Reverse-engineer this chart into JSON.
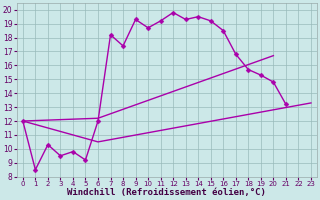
{
  "xlabel": "Windchill (Refroidissement éolien,°C)",
  "bg_color": "#cce8e8",
  "line_color": "#aa00aa",
  "grid_color": "#99bbbb",
  "xlim": [
    -0.5,
    23.5
  ],
  "ylim": [
    8,
    20.5
  ],
  "xticks": [
    0,
    1,
    2,
    3,
    4,
    5,
    6,
    7,
    8,
    9,
    10,
    11,
    12,
    13,
    14,
    15,
    16,
    17,
    18,
    19,
    20,
    21,
    22,
    23
  ],
  "yticks": [
    8,
    9,
    10,
    11,
    12,
    13,
    14,
    15,
    16,
    17,
    18,
    19,
    20
  ],
  "line1_x": [
    0,
    1,
    2,
    3,
    4,
    5,
    6,
    7,
    8,
    9,
    10,
    11,
    12,
    13,
    14,
    15,
    16,
    17,
    18,
    19,
    20,
    21,
    22
  ],
  "line1_y": [
    12.0,
    8.5,
    10.3,
    9.5,
    9.8,
    9.2,
    12.0,
    18.2,
    17.4,
    19.3,
    18.7,
    19.2,
    19.8,
    19.3,
    19.5,
    19.2,
    18.5,
    16.8,
    15.7,
    15.3,
    14.8,
    13.2,
    null
  ],
  "line2_x": [
    0,
    6,
    20
  ],
  "line2_y": [
    12.0,
    12.2,
    16.7
  ],
  "line3_x": [
    0,
    6,
    23
  ],
  "line3_y": [
    12.0,
    10.5,
    13.3
  ],
  "marker_size": 2.5,
  "line_width": 1.0,
  "tick_fontsize": 5.5,
  "xlabel_fontsize": 6.5
}
